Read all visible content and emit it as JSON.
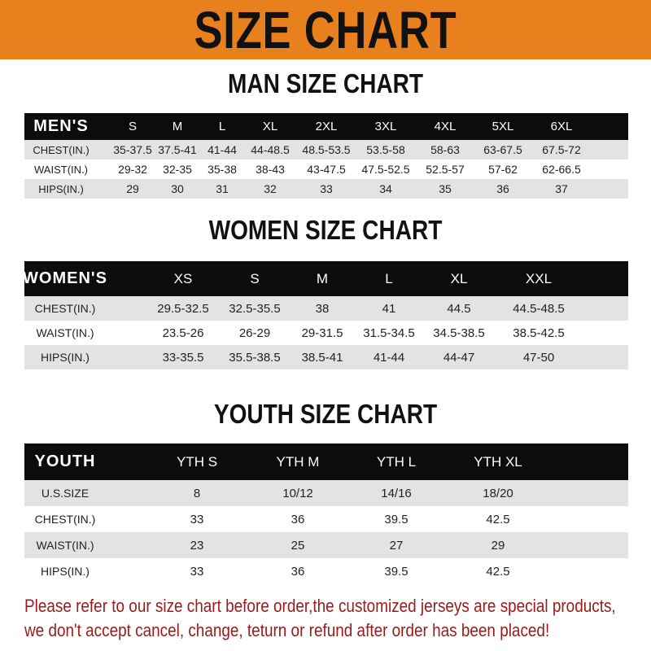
{
  "banner": {
    "title": "SIZE CHART",
    "color": "#e8801e"
  },
  "men": {
    "title": "MAN SIZE CHART",
    "header": [
      "MEN'S",
      "S",
      "M",
      "L",
      "XL",
      "2XL",
      "3XL",
      "4XL",
      "5XL",
      "6XL"
    ],
    "rows": [
      [
        "CHEST(IN.)",
        "35-37.5",
        "37.5-41",
        "41-44",
        "44-48.5",
        "48.5-53.5",
        "53.5-58",
        "58-63",
        "63-67.5",
        "67.5-72"
      ],
      [
        "WAIST(IN.)",
        "29-32",
        "32-35",
        "35-38",
        "38-43",
        "43-47.5",
        "47.5-52.5",
        "52.5-57",
        "57-62",
        "62-66.5"
      ],
      [
        "HIPS(IN.)",
        "29",
        "30",
        "31",
        "32",
        "33",
        "34",
        "35",
        "36",
        "37"
      ]
    ]
  },
  "women": {
    "title": "WOMEN SIZE CHART",
    "header": [
      "WOMEN'S",
      "XS",
      "S",
      "M",
      "L",
      "XL",
      "XXL"
    ],
    "rows": [
      [
        "CHEST(IN.)",
        "29.5-32.5",
        "32.5-35.5",
        "38",
        "41",
        "44.5",
        "44.5-48.5"
      ],
      [
        "WAIST(IN.)",
        "23.5-26",
        "26-29",
        "29-31.5",
        "31.5-34.5",
        "34.5-38.5",
        "38.5-42.5"
      ],
      [
        "HIPS(IN.)",
        "33-35.5",
        "35.5-38.5",
        "38.5-41",
        "41-44",
        "44-47",
        "47-50"
      ]
    ]
  },
  "youth": {
    "title": "YOUTH SIZE CHART",
    "header": [
      "YOUTH",
      "YTH S",
      "YTH M",
      "YTH L",
      "YTH XL"
    ],
    "rows": [
      [
        "U.S.SIZE",
        "8",
        "10/12",
        "14/16",
        "18/20"
      ],
      [
        "CHEST(IN.)",
        "33",
        "36",
        "39.5",
        "42.5"
      ],
      [
        "WAIST(IN.)",
        "23",
        "25",
        "27",
        "29"
      ],
      [
        "HIPS(IN.)",
        "33",
        "36",
        "39.5",
        "42.5"
      ]
    ]
  },
  "notice": {
    "line1": "Please refer to our size chart before order,the customized jerseys are special products,",
    "line2": "we don't accept cancel, change, teturn or refund after order has been placed!",
    "color": "#9c1a1a"
  }
}
